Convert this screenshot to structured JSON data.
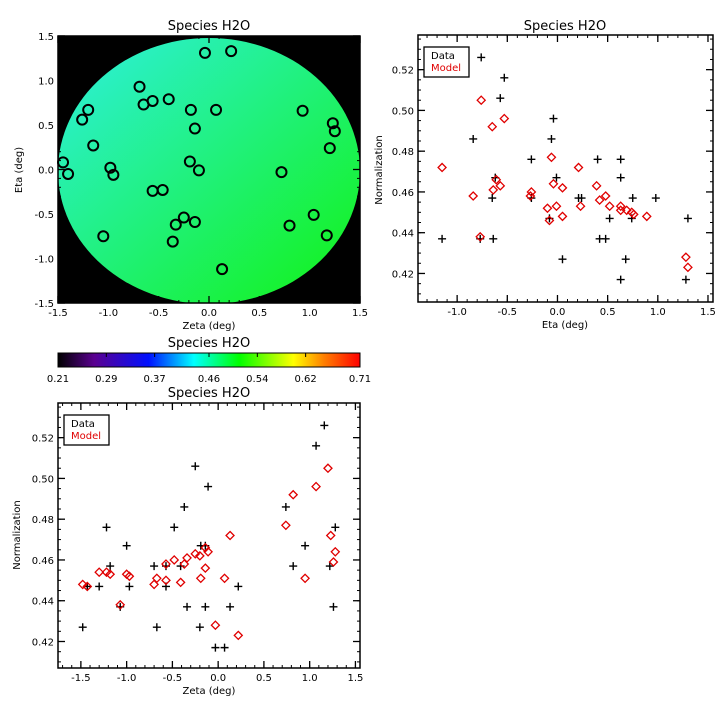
{
  "chart_data": [
    {
      "type": "heatmap",
      "title": "Species H2O",
      "xlabel": "Zeta (deg)",
      "ylabel": "Eta (deg)",
      "xlim": [
        -1.5,
        1.5
      ],
      "ylim": [
        -1.5,
        1.5
      ],
      "xticks": [
        "-1.5",
        "-1.0",
        "-0.5",
        "0.0",
        "0.5",
        "1.0",
        "1.5"
      ],
      "yticks": [
        "-1.5",
        "-1.0",
        "-0.5",
        "0.0",
        "0.5",
        "1.0",
        "1.5"
      ],
      "field_colors": {
        "low_corner": "#2ef0e0",
        "high_corner": "#12f212",
        "background": "#000000"
      },
      "stations": [
        [
          -0.04,
          1.31
        ],
        [
          0.22,
          1.33
        ],
        [
          -0.69,
          0.93
        ],
        [
          -0.65,
          0.73
        ],
        [
          -0.56,
          0.77
        ],
        [
          -0.4,
          0.79
        ],
        [
          -0.18,
          0.67
        ],
        [
          0.07,
          0.67
        ],
        [
          -0.14,
          0.46
        ],
        [
          -1.2,
          0.67
        ],
        [
          -1.26,
          0.56
        ],
        [
          -1.15,
          0.27
        ],
        [
          -1.45,
          0.08
        ],
        [
          -1.4,
          -0.05
        ],
        [
          -0.98,
          0.02
        ],
        [
          -0.95,
          -0.06
        ],
        [
          -0.19,
          0.09
        ],
        [
          -0.1,
          -0.01
        ],
        [
          -0.56,
          -0.24
        ],
        [
          -0.46,
          -0.23
        ],
        [
          -0.25,
          -0.54
        ],
        [
          -0.33,
          -0.62
        ],
        [
          -0.14,
          -0.59
        ],
        [
          -0.36,
          -0.81
        ],
        [
          -1.05,
          -0.75
        ],
        [
          0.13,
          -1.12
        ],
        [
          0.93,
          0.66
        ],
        [
          1.23,
          0.52
        ],
        [
          1.25,
          0.43
        ],
        [
          1.2,
          0.24
        ],
        [
          0.72,
          -0.03
        ],
        [
          1.04,
          -0.51
        ],
        [
          0.8,
          -0.63
        ],
        [
          1.17,
          -0.74
        ]
      ],
      "colorbar": {
        "title": "Species H2O",
        "ticks": [
          "0.21",
          "0.29",
          "0.37",
          "0.46",
          "0.54",
          "0.62",
          "0.71"
        ],
        "range": [
          0.21,
          0.71
        ]
      }
    },
    {
      "type": "scatter",
      "title": "Species H2O",
      "xlabel": "Eta (deg)",
      "ylabel": "Normalization",
      "xlim": [
        -1.39,
        1.55
      ],
      "ylim": [
        0.406,
        0.537
      ],
      "xticks": [
        "-1.0",
        "-0.5",
        "0.0",
        "0.5",
        "1.0",
        "1.5"
      ],
      "yticks": [
        "0.42",
        "0.44",
        "0.46",
        "0.48",
        "0.50",
        "0.52"
      ],
      "legend": {
        "position": "top-left",
        "entries": [
          "Data",
          "Model"
        ]
      },
      "series": [
        {
          "name": "Data",
          "marker": "plus",
          "color": "#000000",
          "points": [
            [
              -0.76,
              0.526
            ],
            [
              -0.53,
              0.516
            ],
            [
              -0.57,
              0.506
            ],
            [
              -0.84,
              0.486
            ],
            [
              -0.04,
              0.496
            ],
            [
              -0.06,
              0.486
            ],
            [
              -0.26,
              0.476
            ],
            [
              0.4,
              0.476
            ],
            [
              0.63,
              0.476
            ],
            [
              -0.62,
              0.467
            ],
            [
              -0.01,
              0.467
            ],
            [
              0.63,
              0.467
            ],
            [
              -0.65,
              0.457
            ],
            [
              -0.26,
              0.457
            ],
            [
              0.21,
              0.457
            ],
            [
              0.24,
              0.457
            ],
            [
              0.75,
              0.457
            ],
            [
              0.98,
              0.457
            ],
            [
              -0.08,
              0.447
            ],
            [
              0.52,
              0.447
            ],
            [
              0.74,
              0.447
            ],
            [
              1.3,
              0.447
            ],
            [
              -1.15,
              0.437
            ],
            [
              -0.77,
              0.437
            ],
            [
              -0.64,
              0.437
            ],
            [
              0.42,
              0.437
            ],
            [
              0.48,
              0.437
            ],
            [
              0.05,
              0.427
            ],
            [
              0.68,
              0.427
            ],
            [
              0.63,
              0.417
            ],
            [
              1.28,
              0.417
            ]
          ]
        },
        {
          "name": "Model",
          "marker": "diamond",
          "color": "#e00000",
          "points": [
            [
              -1.15,
              0.472
            ],
            [
              -0.76,
              0.505
            ],
            [
              -0.65,
              0.492
            ],
            [
              -0.53,
              0.496
            ],
            [
              -0.84,
              0.458
            ],
            [
              -0.77,
              0.438
            ],
            [
              -0.64,
              0.461
            ],
            [
              -0.61,
              0.466
            ],
            [
              -0.57,
              0.463
            ],
            [
              -0.26,
              0.46
            ],
            [
              -0.27,
              0.458
            ],
            [
              -0.1,
              0.452
            ],
            [
              -0.08,
              0.446
            ],
            [
              -0.06,
              0.477
            ],
            [
              -0.04,
              0.464
            ],
            [
              -0.01,
              0.453
            ],
            [
              0.05,
              0.448
            ],
            [
              0.05,
              0.462
            ],
            [
              0.21,
              0.472
            ],
            [
              0.23,
              0.453
            ],
            [
              0.39,
              0.463
            ],
            [
              0.42,
              0.456
            ],
            [
              0.48,
              0.458
            ],
            [
              0.52,
              0.453
            ],
            [
              0.63,
              0.453
            ],
            [
              0.63,
              0.451
            ],
            [
              0.69,
              0.451
            ],
            [
              0.74,
              0.45
            ],
            [
              0.76,
              0.449
            ],
            [
              0.89,
              0.448
            ],
            [
              1.28,
              0.428
            ],
            [
              1.3,
              0.423
            ]
          ]
        }
      ]
    },
    {
      "type": "scatter",
      "title": "Species H2O",
      "xlabel": "Zeta (deg)",
      "ylabel": "Normalization",
      "xlim": [
        -1.75,
        1.55
      ],
      "ylim": [
        0.407,
        0.537
      ],
      "xticks": [
        "-1.5",
        "-1.0",
        "-0.5",
        "0.0",
        "0.5",
        "1.0",
        "1.5"
      ],
      "yticks": [
        "0.42",
        "0.44",
        "0.46",
        "0.48",
        "0.50",
        "0.52"
      ],
      "legend": {
        "position": "top-left",
        "entries": [
          "Data",
          "Model"
        ]
      },
      "series": [
        {
          "name": "Data",
          "marker": "plus",
          "color": "#000000",
          "points": [
            [
              1.16,
              0.526
            ],
            [
              1.07,
              0.516
            ],
            [
              -0.25,
              0.506
            ],
            [
              -0.11,
              0.496
            ],
            [
              -0.37,
              0.486
            ],
            [
              0.74,
              0.486
            ],
            [
              -1.22,
              0.476
            ],
            [
              -0.48,
              0.476
            ],
            [
              1.28,
              0.476
            ],
            [
              -1.0,
              0.467
            ],
            [
              -0.19,
              0.467
            ],
            [
              -0.14,
              0.467
            ],
            [
              0.95,
              0.467
            ],
            [
              -1.18,
              0.457
            ],
            [
              -0.7,
              0.457
            ],
            [
              -0.57,
              0.457
            ],
            [
              -0.41,
              0.457
            ],
            [
              0.82,
              0.457
            ],
            [
              1.22,
              0.457
            ],
            [
              -1.43,
              0.447
            ],
            [
              -1.3,
              0.447
            ],
            [
              -0.97,
              0.447
            ],
            [
              -0.57,
              0.447
            ],
            [
              0.22,
              0.447
            ],
            [
              -1.07,
              0.437
            ],
            [
              -0.34,
              0.437
            ],
            [
              -0.14,
              0.437
            ],
            [
              0.13,
              0.437
            ],
            [
              1.26,
              0.437
            ],
            [
              -1.48,
              0.427
            ],
            [
              -0.67,
              0.427
            ],
            [
              -0.2,
              0.427
            ],
            [
              -0.03,
              0.417
            ],
            [
              0.07,
              0.417
            ]
          ]
        },
        {
          "name": "Model",
          "marker": "diamond",
          "color": "#e00000",
          "points": [
            [
              -1.48,
              0.448
            ],
            [
              -1.43,
              0.447
            ],
            [
              -1.3,
              0.454
            ],
            [
              -1.22,
              0.454
            ],
            [
              -1.18,
              0.453
            ],
            [
              -1.0,
              0.453
            ],
            [
              -0.97,
              0.452
            ],
            [
              -1.07,
              0.438
            ],
            [
              -0.7,
              0.448
            ],
            [
              -0.67,
              0.451
            ],
            [
              -0.57,
              0.458
            ],
            [
              -0.57,
              0.45
            ],
            [
              -0.48,
              0.46
            ],
            [
              -0.41,
              0.449
            ],
            [
              -0.37,
              0.458
            ],
            [
              -0.34,
              0.461
            ],
            [
              -0.25,
              0.463
            ],
            [
              -0.2,
              0.462
            ],
            [
              -0.19,
              0.451
            ],
            [
              -0.14,
              0.456
            ],
            [
              -0.14,
              0.466
            ],
            [
              -0.11,
              0.464
            ],
            [
              -0.03,
              0.428
            ],
            [
              0.07,
              0.451
            ],
            [
              0.13,
              0.472
            ],
            [
              0.22,
              0.423
            ],
            [
              0.74,
              0.477
            ],
            [
              0.82,
              0.492
            ],
            [
              0.95,
              0.451
            ],
            [
              1.07,
              0.496
            ],
            [
              1.2,
              0.505
            ],
            [
              1.23,
              0.472
            ],
            [
              1.26,
              0.459
            ],
            [
              1.28,
              0.464
            ]
          ]
        }
      ]
    }
  ]
}
